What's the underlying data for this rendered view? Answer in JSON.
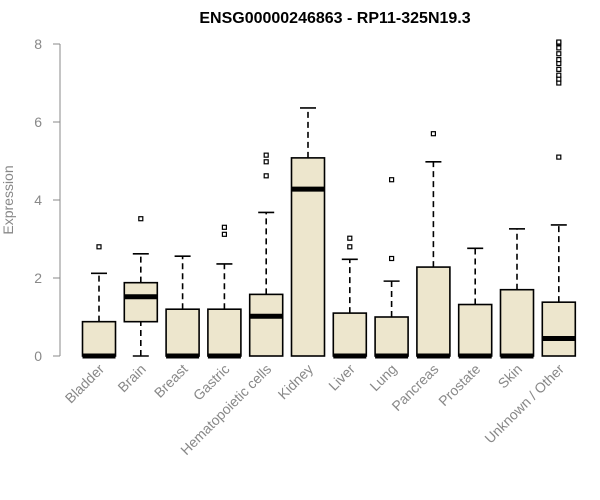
{
  "chart_data": {
    "type": "boxplot",
    "title": "ENSG00000246863 - RP11-325N19.3",
    "ylabel": "Expression",
    "ylim": [
      0,
      8
    ],
    "yticks": [
      "0",
      "2",
      "4",
      "6",
      "8"
    ],
    "categories": [
      "Bladder",
      "Brain",
      "Breast",
      "Gastric",
      "Hematopoietic cells",
      "Kidney",
      "Liver",
      "Lung",
      "Pancreas",
      "Prostate",
      "Skin",
      "Unknown / Other"
    ],
    "boxes": [
      {
        "category": "Bladder",
        "q1": 0,
        "median": 0,
        "q3": 0.88,
        "whisker_low": 0,
        "whisker_high": 2.12,
        "outliers": [
          2.8
        ]
      },
      {
        "category": "Brain",
        "q1": 0.88,
        "median": 1.52,
        "q3": 1.88,
        "whisker_low": 0,
        "whisker_high": 2.62,
        "outliers": [
          3.52
        ]
      },
      {
        "category": "Breast",
        "q1": 0,
        "median": 0,
        "q3": 1.2,
        "whisker_low": 0,
        "whisker_high": 2.56,
        "outliers": []
      },
      {
        "category": "Gastric",
        "q1": 0,
        "median": 0,
        "q3": 1.2,
        "whisker_low": 0,
        "whisker_high": 2.36,
        "outliers": [
          3.12,
          3.3
        ]
      },
      {
        "category": "Hematopoietic cells",
        "q1": 0,
        "median": 1.02,
        "q3": 1.58,
        "whisker_low": 0,
        "whisker_high": 3.68,
        "outliers": [
          4.62,
          4.98,
          5.15
        ]
      },
      {
        "category": "Kidney",
        "q1": 0,
        "median": 4.28,
        "q3": 5.08,
        "whisker_low": 0,
        "whisker_high": 6.36,
        "outliers": []
      },
      {
        "category": "Liver",
        "q1": 0,
        "median": 0,
        "q3": 1.1,
        "whisker_low": 0,
        "whisker_high": 2.48,
        "outliers": [
          2.8,
          3.02
        ]
      },
      {
        "category": "Lung",
        "q1": 0,
        "median": 0,
        "q3": 1.0,
        "whisker_low": 0,
        "whisker_high": 1.92,
        "outliers": [
          2.5,
          4.52
        ]
      },
      {
        "category": "Pancreas",
        "q1": 0,
        "median": 0,
        "q3": 2.28,
        "whisker_low": 0,
        "whisker_high": 4.98,
        "outliers": [
          5.7
        ]
      },
      {
        "category": "Prostate",
        "q1": 0,
        "median": 0,
        "q3": 1.32,
        "whisker_low": 0,
        "whisker_high": 2.76,
        "outliers": []
      },
      {
        "category": "Skin",
        "q1": 0,
        "median": 0,
        "q3": 1.7,
        "whisker_low": 0,
        "whisker_high": 3.26,
        "outliers": []
      },
      {
        "category": "Unknown / Other",
        "q1": 0,
        "median": 0.45,
        "q3": 1.38,
        "whisker_low": 0,
        "whisker_high": 3.36,
        "outliers": [
          5.1,
          7.0,
          7.1,
          7.2,
          7.35,
          7.5,
          7.6,
          7.75,
          7.9,
          8.02,
          8.05
        ]
      }
    ],
    "box_fill": "#ede6cd",
    "box_stroke": "#000000",
    "axis_color": "#888888",
    "grid": false
  }
}
